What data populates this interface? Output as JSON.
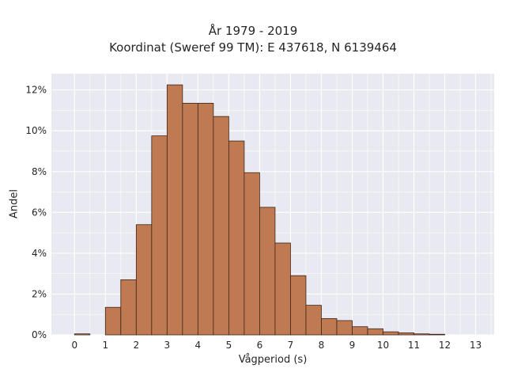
{
  "chart_data": {
    "type": "bar",
    "title_line1": "År 1979 - 2019",
    "title_line2": "Koordinat (Sweref 99 TM): E 437618, N 6139464",
    "xlabel": "Vågperiod (s)",
    "ylabel": "Andel",
    "xlim": [
      -0.75,
      13.6
    ],
    "ylim": [
      0,
      12.8
    ],
    "x_ticks": [
      "0",
      "1",
      "2",
      "3",
      "4",
      "5",
      "6",
      "7",
      "8",
      "9",
      "10",
      "11",
      "12",
      "13"
    ],
    "y_ticks": [
      "0%",
      "2%",
      "4%",
      "6%",
      "8%",
      "10%",
      "12%"
    ],
    "y_tick_values": [
      0,
      2,
      4,
      6,
      8,
      10,
      12
    ],
    "bin_width": 0.5,
    "bin_starts": [
      0,
      0.5,
      1,
      1.5,
      2,
      2.5,
      3,
      3.5,
      4,
      4.5,
      5,
      5.5,
      6,
      6.5,
      7,
      7.5,
      8,
      8.5,
      9,
      9.5,
      10,
      10.5,
      11,
      11.5,
      12,
      12.5
    ],
    "values": [
      0.05,
      0.0,
      1.35,
      2.7,
      5.4,
      9.75,
      12.25,
      11.35,
      11.35,
      10.7,
      9.5,
      7.95,
      6.25,
      4.5,
      2.9,
      1.45,
      0.8,
      0.7,
      0.4,
      0.3,
      0.15,
      0.1,
      0.05,
      0.03,
      0.0,
      0.0
    ],
    "grid": true,
    "bar_color": "#c07a52",
    "bar_edge_color": "#3b2418",
    "plot_background": "#e9e9f2"
  }
}
